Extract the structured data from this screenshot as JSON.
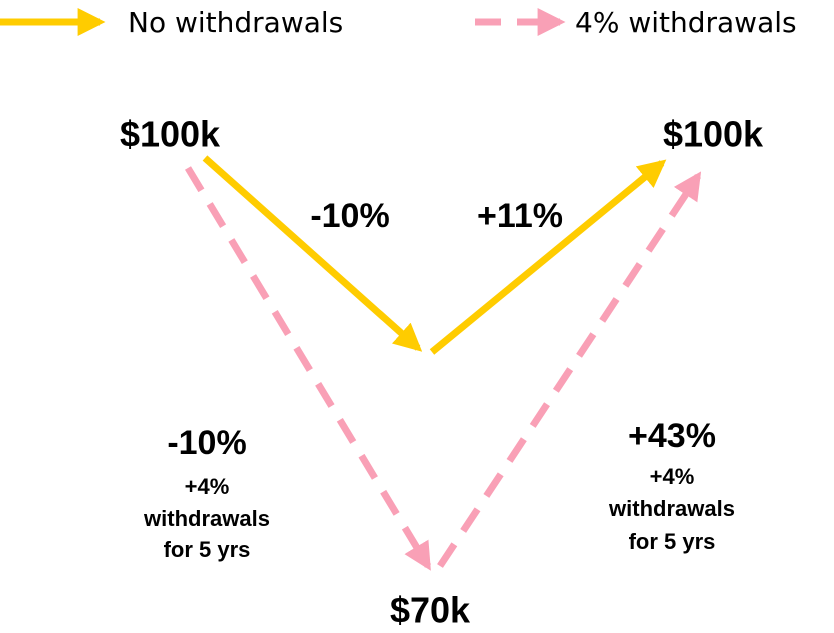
{
  "legend": [
    {
      "label": "No withdrawals"
    },
    {
      "label": "4% withdrawals"
    }
  ],
  "no_withdrawals": {
    "start": "$100k",
    "decline": "-10%",
    "recovery": "+11%",
    "end": "$100k"
  },
  "with_withdrawals": {
    "bottom": "$70k",
    "decline": "-10%",
    "decline_note": [
      "+4%",
      "withdrawals",
      "for 5 yrs"
    ],
    "recovery": "+43%",
    "recovery_note": [
      "+4%",
      "withdrawals",
      "for 5 yrs"
    ]
  }
}
